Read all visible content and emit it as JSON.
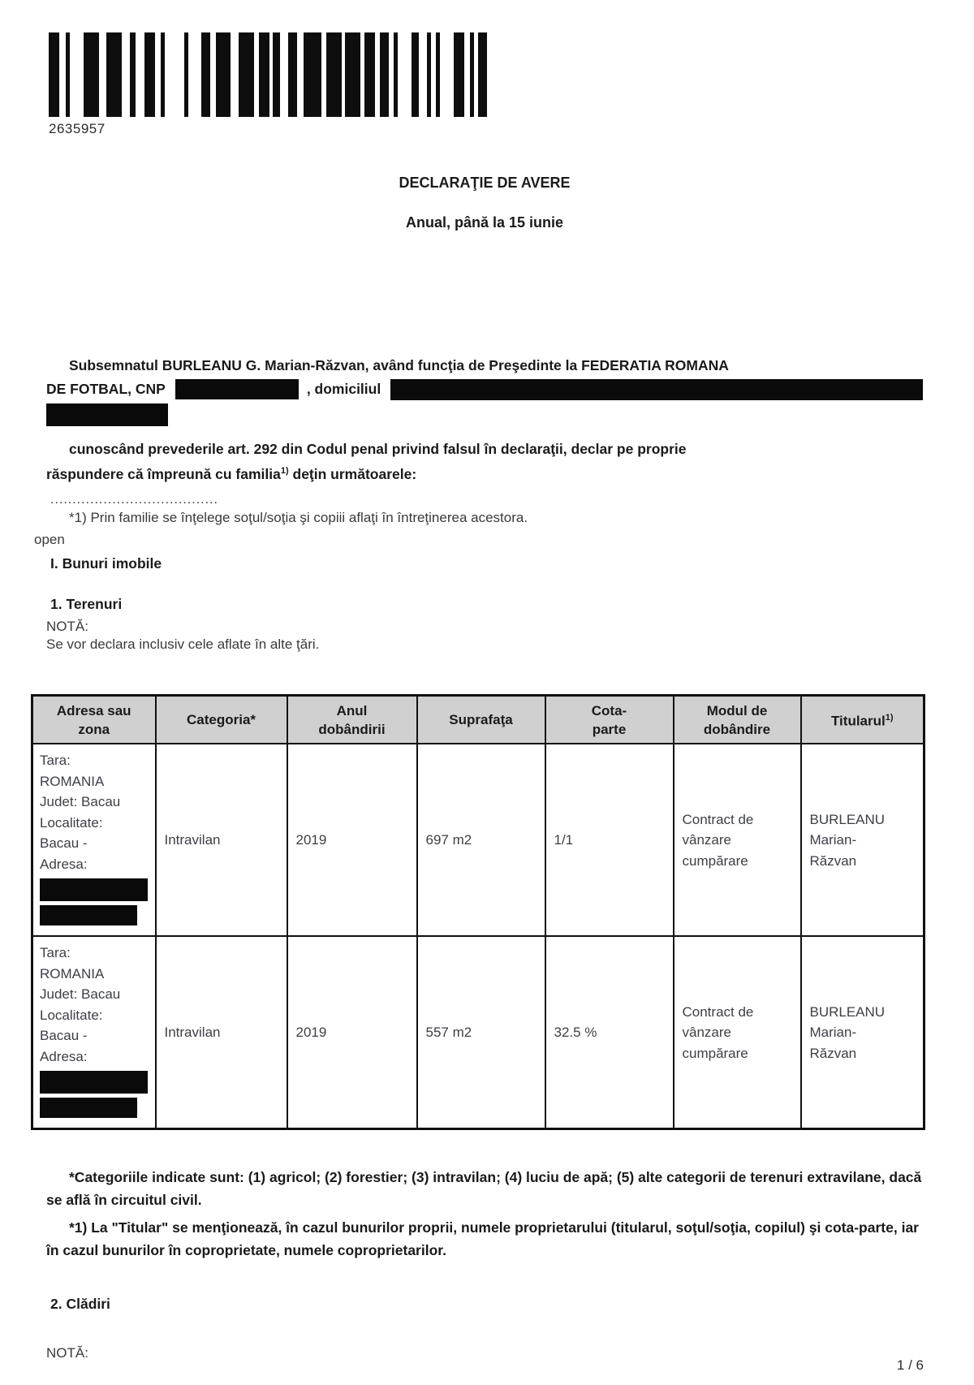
{
  "barcode": {
    "number": "2635957",
    "pattern": [
      13,
      8,
      5,
      17,
      19,
      9,
      19,
      10,
      7,
      11,
      13,
      7,
      5,
      24,
      5,
      16,
      11,
      7,
      18,
      10,
      19,
      6,
      13,
      4,
      9,
      10,
      11,
      8,
      22,
      6,
      19,
      4,
      19,
      5,
      13,
      6,
      11,
      6,
      5,
      17,
      9,
      10,
      5,
      6,
      5,
      17,
      13,
      7,
      5,
      5,
      11
    ]
  },
  "header": {
    "title": "DECLARAŢIE DE AVERE",
    "subtitle": "Anual, până la 15 iunie"
  },
  "declaration": {
    "line1": "Subsemnatul BURLEANU G. Marian-Răzvan, având funcţia de Preşedinte la FEDERATIA ROMANA",
    "line2_before": "DE FOTBAL, CNP",
    "line2_middle": ", domiciliul",
    "oath_line1": "cunoscând prevederile art. 292 din Codul penal privind falsul în declaraţii, declar pe proprie",
    "oath_line2_before_sup": "răspundere că împreună cu familia",
    "oath_sup": "1)",
    "oath_line2_after_sup": " deţin următoarele:",
    "dots": "......................................",
    "family_note": "*1) Prin familie se înţelege soţul/soţia şi copiii aflaţi în întreţinerea acestora.",
    "open_label": "open"
  },
  "sections": {
    "bunuri_imobile": "I. Bunuri imobile",
    "terenuri": "1. Terenuri",
    "nota_label": "NOTĂ:",
    "nota_text": "Se vor declara inclusiv cele aflate în alte ţări.",
    "cladiri": "2. Clădiri",
    "nota2_label": "NOTĂ:"
  },
  "table": {
    "headers": [
      "Adresa sau\nzona",
      "Categoria*",
      "Anul\ndobândirii",
      "Suprafaţa",
      "Cota-\nparte",
      "Modul de\ndobândire",
      "Titularul"
    ],
    "header_sup": "1)",
    "rows": [
      {
        "address": "Tara:\nROMANIA\nJudet: Bacau\nLocalitate:\nBacau -\nAdresa:",
        "category": "Intravilan",
        "year": "2019",
        "area": "697 m2",
        "share": "1/1",
        "mode": "Contract de\nvânzare\ncumpărare",
        "holder": "BURLEANU\nMarian-\nRăzvan"
      },
      {
        "address": "Tara:\nROMANIA\nJudet: Bacau\nLocalitate:\nBacau -\nAdresa:",
        "category": "Intravilan",
        "year": "2019",
        "area": "557 m2",
        "share": "32.5 %",
        "mode": "Contract de\nvânzare\ncumpărare",
        "holder": "BURLEANU\nMarian-\nRăzvan"
      }
    ]
  },
  "footnotes": {
    "categories": "*Categoriile indicate sunt: (1) agricol; (2) forestier; (3) intravilan; (4) luciu de apă; (5) alte categorii de terenuri extravilane, dacă se află în circuitul civil.",
    "titular": "*1) La \"Titular\" se menţionează, în cazul bunurilor proprii, numele proprietarului (titularul, soţul/soţia, copilul) şi cota-parte, iar în cazul bunurilor în coproprietate, numele coproprietarilor."
  },
  "page": {
    "number_label": "1 / 6"
  },
  "colors": {
    "redaction": "#0a0a0a",
    "table_header_bg": "#d0d0d0",
    "text": "#212121"
  }
}
